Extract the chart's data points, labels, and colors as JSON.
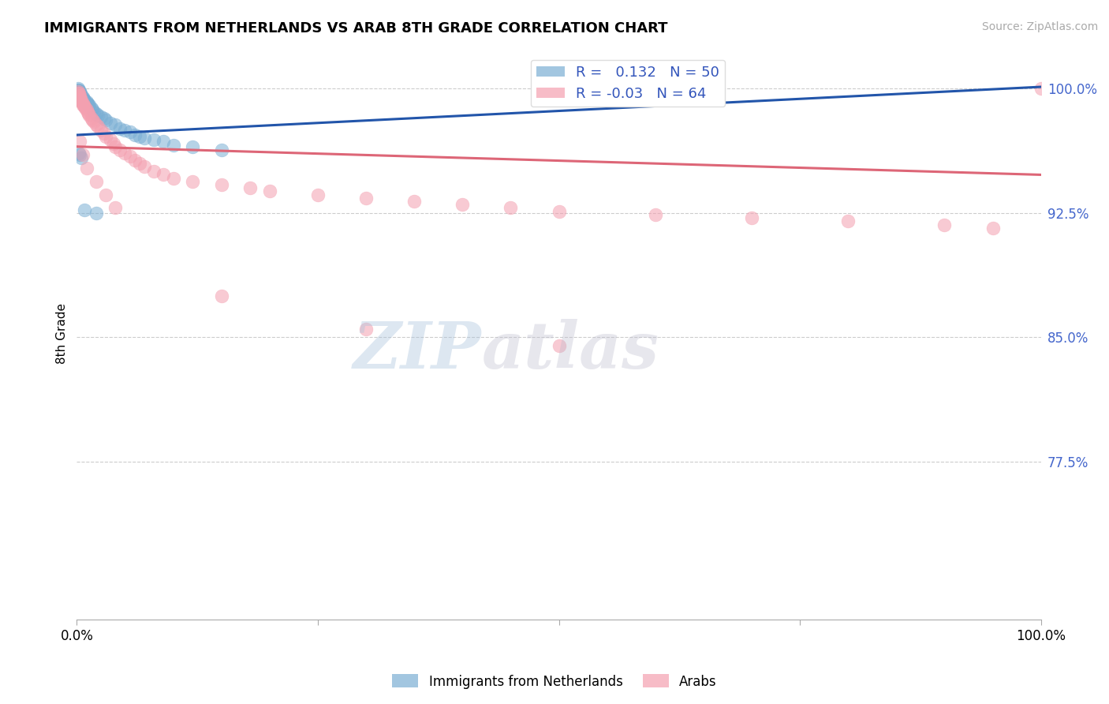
{
  "title": "IMMIGRANTS FROM NETHERLANDS VS ARAB 8TH GRADE CORRELATION CHART",
  "source": "Source: ZipAtlas.com",
  "ylabel": "8th Grade",
  "ylim": [
    0.68,
    1.025
  ],
  "xlim": [
    0.0,
    1.0
  ],
  "blue_R": 0.132,
  "blue_N": 50,
  "pink_R": -0.03,
  "pink_N": 64,
  "blue_color": "#7bafd4",
  "pink_color": "#f4a0b0",
  "blue_line_color": "#2255aa",
  "pink_line_color": "#dd6677",
  "legend_label_blue": "Immigrants from Netherlands",
  "legend_label_pink": "Arabs",
  "ytick_vals": [
    0.775,
    0.85,
    0.925,
    1.0
  ],
  "ytick_labels": [
    "77.5%",
    "85.0%",
    "92.5%",
    "100.0%"
  ],
  "blue_line_x0": 0.0,
  "blue_line_x1": 1.0,
  "blue_line_y0": 0.972,
  "blue_line_y1": 1.001,
  "pink_line_x0": 0.0,
  "pink_line_x1": 1.0,
  "pink_line_y0": 0.965,
  "pink_line_y1": 0.948,
  "blue_scatter_x": [
    0.001,
    0.001,
    0.001,
    0.002,
    0.002,
    0.002,
    0.003,
    0.003,
    0.003,
    0.004,
    0.004,
    0.005,
    0.005,
    0.006,
    0.006,
    0.007,
    0.007,
    0.008,
    0.009,
    0.01,
    0.01,
    0.011,
    0.012,
    0.013,
    0.015,
    0.016,
    0.018,
    0.02,
    0.022,
    0.025,
    0.028,
    0.03,
    0.035,
    0.04,
    0.045,
    0.05,
    0.055,
    0.06,
    0.065,
    0.07,
    0.08,
    0.09,
    0.1,
    0.12,
    0.15,
    0.002,
    0.003,
    0.005,
    0.008,
    0.02
  ],
  "blue_scatter_y": [
    0.999,
    1.0,
    0.998,
    0.999,
    0.998,
    0.997,
    0.998,
    0.997,
    0.996,
    0.997,
    0.996,
    0.996,
    0.995,
    0.995,
    0.994,
    0.994,
    0.993,
    0.993,
    0.992,
    0.991,
    0.992,
    0.991,
    0.99,
    0.99,
    0.988,
    0.987,
    0.986,
    0.985,
    0.984,
    0.983,
    0.982,
    0.981,
    0.979,
    0.978,
    0.976,
    0.975,
    0.974,
    0.972,
    0.971,
    0.97,
    0.969,
    0.968,
    0.966,
    0.965,
    0.963,
    0.961,
    0.96,
    0.958,
    0.927,
    0.925
  ],
  "pink_scatter_x": [
    0.001,
    0.001,
    0.002,
    0.002,
    0.003,
    0.003,
    0.004,
    0.004,
    0.005,
    0.005,
    0.006,
    0.006,
    0.007,
    0.008,
    0.009,
    0.01,
    0.011,
    0.012,
    0.013,
    0.015,
    0.016,
    0.018,
    0.02,
    0.022,
    0.025,
    0.028,
    0.03,
    0.035,
    0.038,
    0.04,
    0.045,
    0.05,
    0.055,
    0.06,
    0.065,
    0.07,
    0.08,
    0.09,
    0.1,
    0.12,
    0.15,
    0.18,
    0.2,
    0.25,
    0.3,
    0.35,
    0.4,
    0.45,
    0.5,
    0.6,
    0.7,
    0.8,
    0.9,
    0.95,
    1.0,
    0.003,
    0.006,
    0.01,
    0.02,
    0.03,
    0.04,
    0.15,
    0.3,
    0.5
  ],
  "pink_scatter_y": [
    0.998,
    0.997,
    0.997,
    0.996,
    0.996,
    0.995,
    0.994,
    0.993,
    0.993,
    0.992,
    0.991,
    0.99,
    0.99,
    0.989,
    0.988,
    0.987,
    0.986,
    0.985,
    0.984,
    0.982,
    0.981,
    0.98,
    0.978,
    0.977,
    0.975,
    0.973,
    0.971,
    0.969,
    0.967,
    0.965,
    0.963,
    0.961,
    0.959,
    0.957,
    0.955,
    0.953,
    0.95,
    0.948,
    0.946,
    0.944,
    0.942,
    0.94,
    0.938,
    0.936,
    0.934,
    0.932,
    0.93,
    0.928,
    0.926,
    0.924,
    0.922,
    0.92,
    0.918,
    0.916,
    1.0,
    0.968,
    0.96,
    0.952,
    0.944,
    0.936,
    0.928,
    0.875,
    0.855,
    0.845
  ]
}
